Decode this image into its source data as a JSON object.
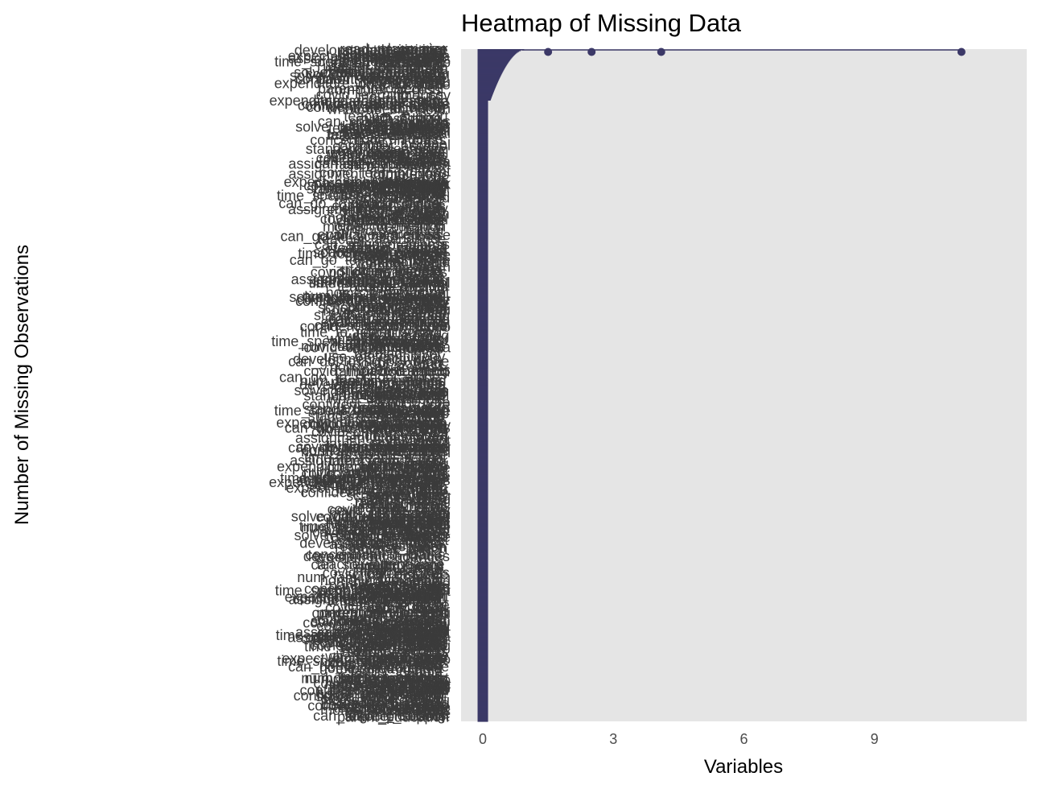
{
  "chart_data": {
    "type": "bar",
    "orientation": "horizontal",
    "title": "Heatmap of Missing Data",
    "xlabel": "Variables",
    "ylabel": "Number of Missing Observations",
    "xlim": [
      -0.5,
      12.5
    ],
    "x_ticks": [
      "0",
      "3",
      "6",
      "9"
    ],
    "x_tick_values": [
      0,
      3,
      6,
      9
    ],
    "grid": false,
    "legend": "none",
    "colors": {
      "bar": "#3b3867",
      "panel": "#e5e5e5",
      "label": "#3b3b3b"
    },
    "bar_groups": [
      {
        "rows": 64,
        "start": 0.95,
        "end": 0.18,
        "curve": 0.55
      },
      {
        "rows": 220,
        "start": 0.12,
        "end": 0.12,
        "curve": 1
      },
      {
        "rows": 220,
        "start": 0.12,
        "end": 0.12,
        "curve": 1
      },
      {
        "rows": 220,
        "start": 0.12,
        "end": 0.12,
        "curve": 1
      },
      {
        "rows": 119,
        "start": 0.12,
        "end": 0.12,
        "curve": 1
      }
    ],
    "outliers": [
      1.5,
      2.5,
      4.1,
      11.0
    ],
    "variable_labels": [
      "can_go_to_school_alone",
      "student_id",
      "teacher_support",
      "what_doesnt_help",
      "career_goal",
      "can_solve_problems",
      "confident_about_future",
      "concentrate_in_class",
      "time_spent_on_homework",
      "covid_impact_learning",
      "covid_online_classes",
      "digital_access",
      "digital_learning",
      "school_distance",
      "school_facilities",
      "father_occupation",
      "expect_higher_education",
      "expenditure_on_education",
      "parent_involvement",
      "work_at_home",
      "use_of_technology",
      "time_to_reach_school",
      "teacher_feedback",
      "teaching_method",
      "teacher_attendance",
      "study_time",
      "student_interest",
      "standard_of_learning",
      "solve_difficult_problems",
      "school_environment",
      "school_type",
      "reading_habit",
      "read_newspaper",
      "reading_level",
      "proper_meals",
      "policy_awareness",
      "parent_education",
      "num_meals",
      "num_family_members",
      "mother_occupation",
      "math_performance",
      "math_practice",
      "math_level",
      "inhouse_tuition",
      "internet_access",
      "identity_card",
      "home_environment",
      "hindi_reading",
      "hindi_writing",
      "future_plans",
      "family_income",
      "family_size",
      "expected_marks",
      "evaluation_method",
      "doubt_solving",
      "development_activities",
      "covid_learning_loss",
      "covid_effect",
      "covid_vaccination",
      "covid_home_study",
      "computer_access",
      "class_size",
      "calculation_skills",
      "assessment_type",
      "assignment_completion",
      "attendance",
      "address_type"
    ],
    "visible_labels": [
      {
        "text": "can_go",
        "y": 0.013
      },
      {
        "text": "continu",
        "y": 0.043
      },
      {
        "text": "time_cov",
        "y": 0.063
      },
      {
        "text": "covid_on",
        "y": 0.082
      },
      {
        "text": "digital",
        "y": 0.12
      },
      {
        "text": "school",
        "y": 0.138
      },
      {
        "text": "expecta",
        "y": 0.163
      },
      {
        "text": "parent",
        "y": 0.178
      },
      {
        "text": "work",
        "y": 0.197
      },
      {
        "text": "use",
        "y": 0.274
      },
      {
        "text": "teache",
        "y": 0.304
      },
      {
        "text": "teach",
        "y": 0.322
      },
      {
        "text": "standar",
        "y": 0.372
      },
      {
        "text": "solve_difficu",
        "y": 0.387
      },
      {
        "text": "schoo",
        "y": 0.413
      },
      {
        "text": "rea",
        "y": 0.444
      },
      {
        "text": "prope",
        "y": 0.54
      },
      {
        "text": "policy",
        "y": 0.562
      },
      {
        "text": "parent",
        "y": 0.585
      },
      {
        "text": "hom",
        "y": 0.593
      },
      {
        "text": "num",
        "y": 0.603
      },
      {
        "text": "math_",
        "y": 0.655
      },
      {
        "text": "math",
        "y": 0.697
      },
      {
        "text": "inhouse",
        "y": 0.731
      },
      {
        "text": "hind",
        "y": 0.798
      },
      {
        "text": "hin",
        "y": 0.81
      },
      {
        "text": "fami",
        "y": 0.846
      },
      {
        "text": "expect",
        "y": 0.876
      },
      {
        "text": "evalua",
        "y": 0.882
      },
      {
        "text": "develo",
        "y": 0.916
      },
      {
        "text": "covid_",
        "y": 0.94
      },
      {
        "text": "covid_io",
        "y": 0.947
      },
      {
        "text": "covid",
        "y": 0.958
      },
      {
        "text": "cov",
        "y": 0.963
      },
      {
        "text": "calc",
        "y": 0.993
      },
      {
        "text": "asse",
        "y": 0.998
      }
    ]
  }
}
